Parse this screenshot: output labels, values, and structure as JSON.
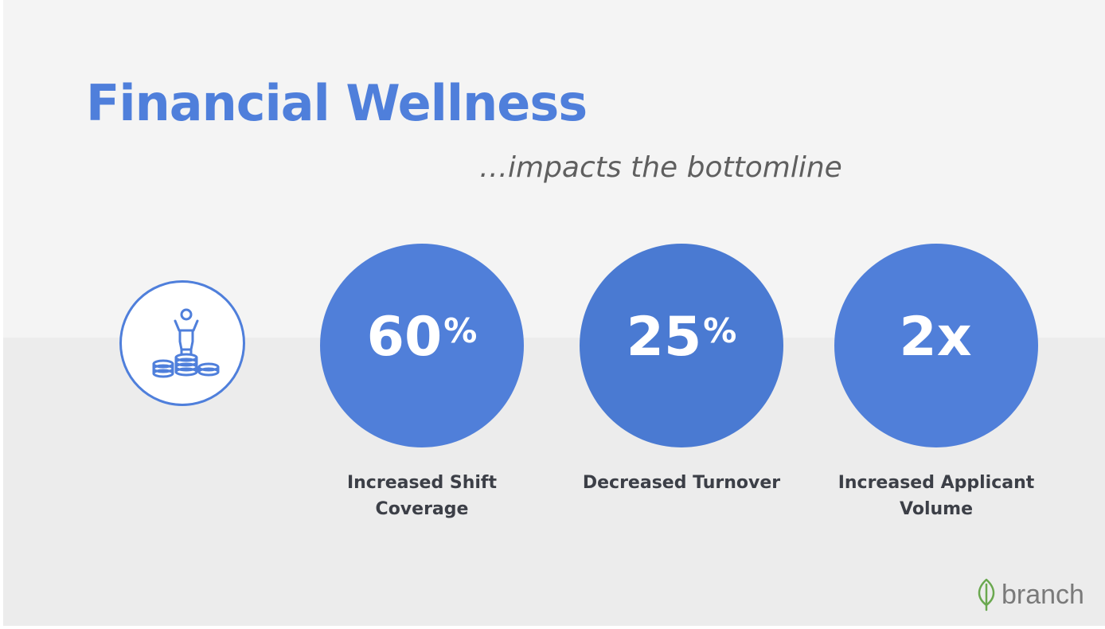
{
  "slide": {
    "title": "Financial Wellness",
    "subtitle": "…impacts the bottomline",
    "icon": "person-on-coins-icon",
    "stats": [
      {
        "value": "60",
        "superscript": "%",
        "label_lines": [
          "Increased Shift",
          "Coverage"
        ]
      },
      {
        "value": "25",
        "superscript": "%",
        "label_lines": [
          "Decreased Turnover"
        ]
      },
      {
        "value": "2x",
        "superscript": "",
        "label_lines": [
          "Increased Applicant",
          "Volume"
        ]
      }
    ],
    "brand": {
      "name": "branch",
      "icon": "leaf-icon"
    }
  },
  "colors": {
    "accent": "#4f7fdb",
    "circle": "#507fd9",
    "label": "#3c3f47",
    "brand_leaf": "#6aa84f",
    "background": "#f4f4f4"
  }
}
